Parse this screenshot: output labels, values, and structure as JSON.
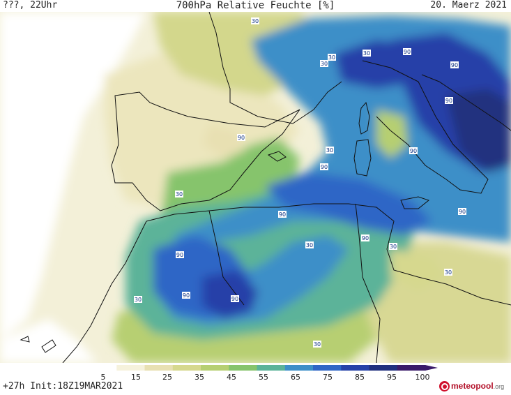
{
  "header": {
    "left": "???, 22Uhr",
    "title": "700hPa Relative Feuchte [%]",
    "date": "20. Maerz 2021"
  },
  "footer": {
    "run_info": "+27h Init:18Z19MAR2021",
    "logo_name": "meteopool",
    "logo_suffix": ".org"
  },
  "legend": {
    "tick_labels": [
      "5",
      "15",
      "25",
      "35",
      "45",
      "55",
      "65",
      "75",
      "85",
      "95",
      "100"
    ],
    "colors": [
      "#ffffff",
      "#f6f2dc",
      "#e8e0b2",
      "#d6d88e",
      "#b6cf72",
      "#86c46c",
      "#5bb399",
      "#3d8fc8",
      "#2f66c6",
      "#2641a8",
      "#20307f",
      "#3a1b6a"
    ]
  },
  "map": {
    "region": "Iberia, Western Mediterranean, North Africa",
    "contour_labels": [
      {
        "text": "30",
        "kind": "contour-30"
      },
      {
        "text": "90",
        "kind": "contour-90"
      },
      {
        "text": "30",
        "kind": "contour-30"
      },
      {
        "text": "30",
        "kind": "contour-30"
      },
      {
        "text": "90",
        "kind": "contour-90"
      },
      {
        "text": "90",
        "kind": "contour-90"
      },
      {
        "text": "90",
        "kind": "contour-90"
      },
      {
        "text": "30",
        "kind": "contour-30"
      },
      {
        "text": "90",
        "kind": "contour-90"
      },
      {
        "text": "30",
        "kind": "contour-30"
      },
      {
        "text": "90",
        "kind": "contour-90"
      },
      {
        "text": "90",
        "kind": "contour-90"
      },
      {
        "text": "90",
        "kind": "contour-90"
      },
      {
        "text": "30",
        "kind": "contour-30"
      },
      {
        "text": "30",
        "kind": "contour-30"
      },
      {
        "text": "90",
        "kind": "contour-90"
      },
      {
        "text": "90",
        "kind": "contour-90"
      },
      {
        "text": "30",
        "kind": "contour-30"
      },
      {
        "text": "90",
        "kind": "contour-90"
      },
      {
        "text": "30",
        "kind": "contour-30"
      },
      {
        "text": "90",
        "kind": "contour-90"
      },
      {
        "text": "30",
        "kind": "contour-30"
      },
      {
        "text": "30",
        "kind": "contour-30"
      }
    ]
  }
}
